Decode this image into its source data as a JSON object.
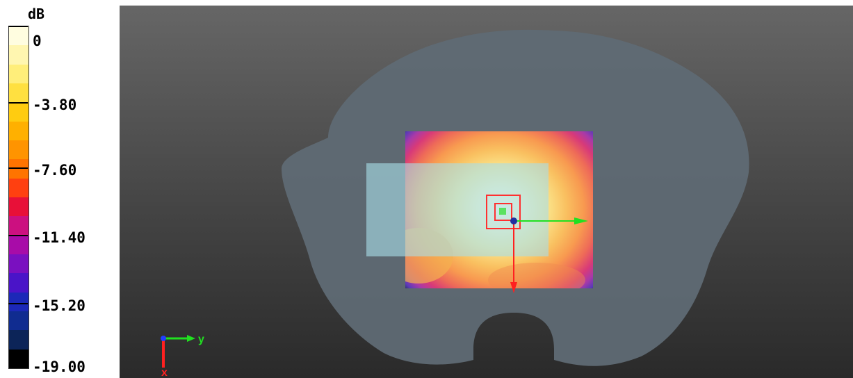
{
  "legend": {
    "unit": "dB",
    "ticks": [
      "0",
      "-3.80",
      "-7.60",
      "-11.40",
      "-15.20",
      "-19.00"
    ],
    "bands": [
      "#fffde0",
      "#fff6b0",
      "#ffee7a",
      "#ffe040",
      "#ffcc10",
      "#ffb000",
      "#ff9400",
      "#ff7400",
      "#ff4010",
      "#e81038",
      "#cc1080",
      "#a80ca8",
      "#7a10c0",
      "#4a14c8",
      "#1c28b8",
      "#102c90",
      "#0c2458",
      "#000000"
    ]
  },
  "scene": {
    "view": "3D SAR measurement scan - top view",
    "phantom_color": "#5f6a74",
    "scan_area_color": "#9ecad4",
    "cursor_color": "#ff3030",
    "peak_color": "#2030a0"
  },
  "axes": {
    "y_label": "y",
    "x_label": "x",
    "y_color": "#20e020",
    "x_color": "#ff2020",
    "z_color": "#2040ff"
  }
}
